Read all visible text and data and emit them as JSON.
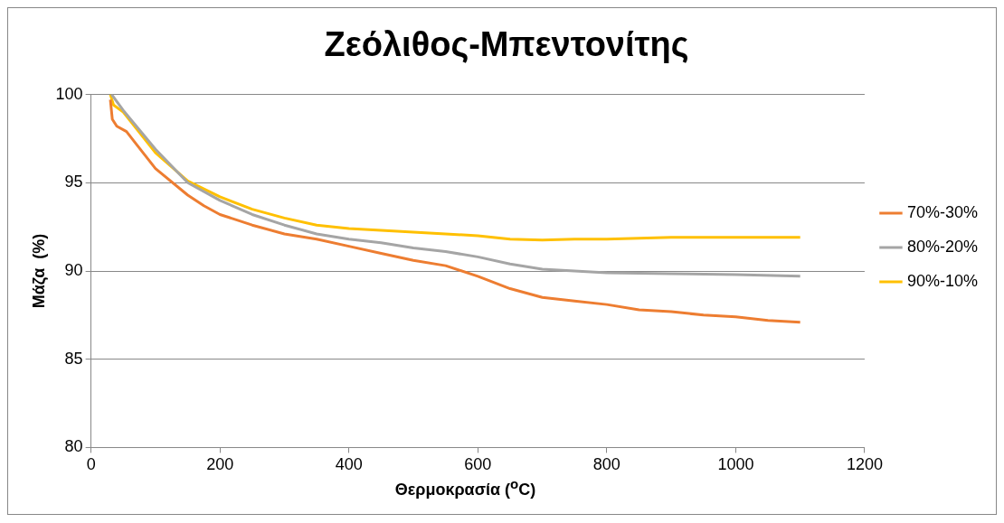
{
  "chart_data": {
    "type": "line",
    "title": "Ζεόλιθος-Μπεντονίτης",
    "xlabel": "Θερμοκρασία ($^{o}$C)",
    "ylabel": "Μάζα  (%)",
    "xlim": [
      0,
      1200
    ],
    "xticks": [
      0,
      200,
      400,
      600,
      800,
      1000,
      1200
    ],
    "ylim": [
      80,
      100
    ],
    "yticks": [
      80,
      85,
      90,
      95,
      100
    ],
    "grid": "y",
    "legend": "right",
    "marker": "none",
    "line_style": "solid",
    "series": [
      {
        "name": "70%-30%",
        "color": "#ed7d31",
        "x": [
          30,
          33,
          40,
          55,
          70,
          100,
          150,
          175,
          200,
          250,
          300,
          350,
          400,
          450,
          500,
          550,
          600,
          650,
          700,
          750,
          800,
          850,
          900,
          950,
          1000,
          1050,
          1100
        ],
        "values": [
          99.7,
          98.6,
          98.2,
          97.9,
          97.2,
          95.8,
          94.3,
          93.7,
          93.2,
          92.6,
          92.1,
          91.8,
          91.4,
          91.0,
          90.6,
          90.3,
          89.7,
          89.0,
          88.5,
          88.3,
          88.1,
          87.8,
          87.7,
          87.5,
          87.4,
          87.2,
          87.1
        ]
      },
      {
        "name": "80%-20%",
        "color": "#a5a5a5",
        "x": [
          32,
          50,
          100,
          150,
          200,
          250,
          300,
          350,
          400,
          450,
          500,
          550,
          600,
          650,
          700,
          750,
          800,
          900,
          1000,
          1100
        ],
        "values": [
          100,
          99.1,
          96.9,
          95.0,
          94.0,
          93.2,
          92.6,
          92.1,
          91.8,
          91.6,
          91.3,
          91.1,
          90.8,
          90.4,
          90.1,
          90.0,
          89.9,
          89.85,
          89.8,
          89.7
        ]
      },
      {
        "name": "90%-10%",
        "color": "#ffc000",
        "x": [
          30,
          35,
          50,
          100,
          150,
          200,
          250,
          300,
          350,
          400,
          450,
          500,
          550,
          600,
          650,
          700,
          750,
          800,
          900,
          1000,
          1100
        ],
        "values": [
          100,
          99.4,
          99.0,
          96.7,
          95.1,
          94.2,
          93.5,
          93.0,
          92.6,
          92.4,
          92.3,
          92.2,
          92.1,
          92.0,
          91.8,
          91.75,
          91.8,
          91.8,
          91.9,
          91.9,
          91.9
        ]
      }
    ]
  }
}
